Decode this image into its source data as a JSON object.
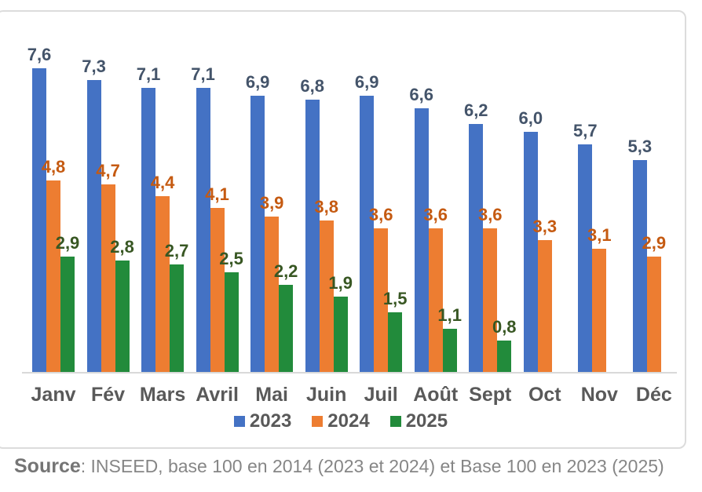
{
  "chart_data": {
    "type": "bar",
    "categories": [
      "Janv",
      "Fév",
      "Mars",
      "Avril",
      "Mai",
      "Juin",
      "Juil",
      "Août",
      "Sept",
      "Oct",
      "Nov",
      "Déc"
    ],
    "series": [
      {
        "name": "2023",
        "color": "#4472C4",
        "label_color": "#44546A",
        "values": [
          7.6,
          7.3,
          7.1,
          7.1,
          6.9,
          6.8,
          6.9,
          6.6,
          6.2,
          6.0,
          5.7,
          5.3
        ],
        "labels": [
          "7,6",
          "7,3",
          "7,1",
          "7,1",
          "6,9",
          "6,8",
          "6,9",
          "6,6",
          "6,2",
          "6,0",
          "5,7",
          "5,3"
        ]
      },
      {
        "name": "2024",
        "color": "#ED7D31",
        "label_color": "#C55A11",
        "values": [
          4.8,
          4.7,
          4.4,
          4.1,
          3.9,
          3.8,
          3.6,
          3.6,
          3.6,
          3.3,
          3.1,
          2.9
        ],
        "labels": [
          "4,8",
          "4,7",
          "4,4",
          "4,1",
          "3,9",
          "3,8",
          "3,6",
          "3,6",
          "3,6",
          "3,3",
          "3,1",
          "2,9"
        ]
      },
      {
        "name": "2025",
        "color": "#228B3B",
        "label_color": "#385723",
        "values": [
          2.9,
          2.8,
          2.7,
          2.5,
          2.2,
          1.9,
          1.5,
          1.1,
          0.8,
          null,
          null,
          null
        ],
        "labels": [
          "2,9",
          "2,8",
          "2,7",
          "2,5",
          "2,2",
          "1,9",
          "1,5",
          "1,1",
          "0,8",
          null,
          null,
          null
        ]
      }
    ],
    "title": "",
    "xlabel": "",
    "ylabel": "",
    "ylim": [
      0,
      9
    ],
    "grid": false,
    "legend_position": "bottom",
    "value_decimal_separator": ","
  },
  "source": {
    "label": "Source",
    "text": ": INSEED, base 100 en 2014 (2023 et 2024) et Base 100 en 2023 (2025)"
  }
}
